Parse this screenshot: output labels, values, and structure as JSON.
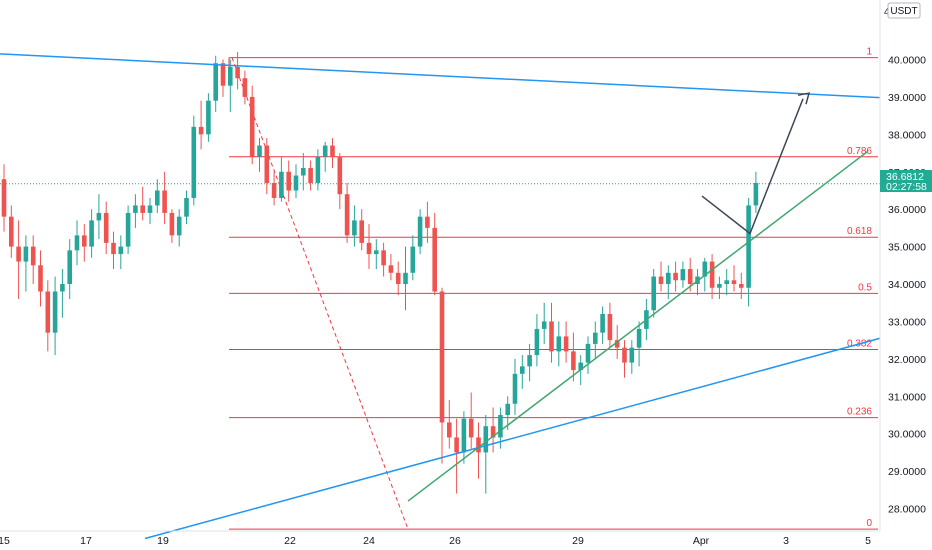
{
  "colors": {
    "up": "#26a69a",
    "down": "#ef5350",
    "fib": "#f23645",
    "trend_blue": "#2196f3",
    "trend_green": "#3fa66f",
    "arrow": "#3d4655",
    "axis_text": "#131722",
    "badge": "#22ab94"
  },
  "chart_data": {
    "type": "candlestick",
    "currency": "USDT",
    "y_axis_unit": "USDT",
    "ylim": [
      27.3,
      41.2
    ],
    "y_ticks": [
      "28.0000",
      "29.0000",
      "30.0000",
      "31.0000",
      "32.0000",
      "33.0000",
      "34.0000",
      "35.0000",
      "36.0000",
      "37.0000",
      "38.0000",
      "39.0000",
      "40.0000"
    ],
    "x_ticks": [
      "15",
      "17",
      "19",
      "22",
      "24",
      "26",
      "29",
      "Apr",
      "3",
      "5"
    ],
    "last_price": "36.6812",
    "countdown": "02:27:58",
    "fib_levels": [
      {
        "label": "1",
        "value": 40.05
      },
      {
        "label": "0.786",
        "value": 37.4
      },
      {
        "label": "0.618",
        "value": 35.25
      },
      {
        "label": "0.5",
        "value": 33.75
      },
      {
        "label": "0.382",
        "value": 32.25
      },
      {
        "label": "0.236",
        "value": 30.43
      },
      {
        "label": "0",
        "value": 27.45
      }
    ],
    "candles": [
      [
        36.8,
        37.2,
        35.4,
        35.8
      ],
      [
        35.8,
        36.1,
        34.7,
        35.0
      ],
      [
        35.0,
        35.7,
        33.6,
        34.6
      ],
      [
        34.6,
        35.3,
        33.8,
        35.0
      ],
      [
        35.0,
        35.3,
        34.0,
        34.5
      ],
      [
        34.5,
        34.9,
        33.4,
        33.8
      ],
      [
        33.8,
        34.1,
        32.2,
        32.7
      ],
      [
        32.7,
        34.2,
        32.1,
        33.8
      ],
      [
        33.8,
        34.4,
        33.1,
        34.0
      ],
      [
        34.0,
        35.2,
        33.6,
        34.9
      ],
      [
        34.9,
        35.7,
        34.5,
        35.3
      ],
      [
        35.3,
        35.6,
        34.6,
        35.0
      ],
      [
        35.0,
        36.0,
        34.7,
        35.7
      ],
      [
        35.7,
        36.4,
        35.2,
        35.9
      ],
      [
        35.9,
        36.2,
        34.8,
        35.1
      ],
      [
        35.1,
        35.4,
        34.4,
        34.8
      ],
      [
        34.8,
        35.3,
        34.4,
        35.0
      ],
      [
        35.0,
        36.1,
        34.8,
        35.9
      ],
      [
        35.9,
        36.4,
        35.5,
        36.1
      ],
      [
        36.1,
        36.6,
        35.7,
        35.9
      ],
      [
        35.9,
        36.3,
        35.6,
        36.1
      ],
      [
        36.1,
        36.8,
        35.9,
        36.5
      ],
      [
        36.5,
        37.0,
        35.6,
        35.9
      ],
      [
        35.9,
        36.0,
        35.1,
        35.3
      ],
      [
        35.3,
        36.0,
        35.0,
        35.8
      ],
      [
        35.8,
        36.5,
        35.6,
        36.3
      ],
      [
        36.3,
        38.5,
        36.1,
        38.2
      ],
      [
        38.2,
        38.9,
        37.6,
        38.0
      ],
      [
        38.0,
        39.1,
        37.8,
        38.9
      ],
      [
        38.9,
        40.1,
        38.6,
        39.9
      ],
      [
        39.9,
        40.0,
        39.0,
        39.3
      ],
      [
        39.3,
        40.0,
        38.6,
        39.8
      ],
      [
        39.8,
        40.2,
        39.2,
        39.5
      ],
      [
        39.5,
        39.7,
        38.8,
        39.0
      ],
      [
        39.0,
        39.3,
        37.2,
        37.4
      ],
      [
        37.4,
        37.9,
        37.0,
        37.7
      ],
      [
        37.7,
        37.9,
        36.4,
        36.7
      ],
      [
        36.7,
        37.0,
        36.1,
        36.3
      ],
      [
        36.3,
        37.4,
        36.2,
        37.0
      ],
      [
        37.0,
        37.3,
        36.2,
        36.5
      ],
      [
        36.5,
        37.2,
        36.3,
        36.9
      ],
      [
        36.9,
        37.5,
        36.5,
        37.1
      ],
      [
        37.1,
        37.3,
        36.5,
        36.7
      ],
      [
        36.7,
        37.6,
        36.5,
        37.4
      ],
      [
        37.4,
        37.8,
        37.0,
        37.7
      ],
      [
        37.7,
        37.9,
        37.1,
        37.4
      ],
      [
        37.4,
        37.5,
        36.0,
        36.4
      ],
      [
        36.4,
        36.7,
        35.1,
        35.3
      ],
      [
        35.3,
        36.1,
        35.0,
        35.7
      ],
      [
        35.7,
        36.0,
        34.9,
        35.1
      ],
      [
        35.1,
        35.6,
        34.4,
        34.8
      ],
      [
        34.8,
        35.2,
        34.4,
        34.9
      ],
      [
        34.9,
        35.1,
        34.2,
        34.5
      ],
      [
        34.5,
        34.8,
        34.1,
        34.3
      ],
      [
        34.3,
        34.6,
        33.7,
        34.0
      ],
      [
        34.0,
        35.0,
        33.3,
        34.3
      ],
      [
        34.3,
        35.3,
        34.1,
        35.0
      ],
      [
        35.0,
        36.0,
        34.8,
        35.8
      ],
      [
        35.8,
        36.2,
        35.1,
        35.5
      ],
      [
        35.5,
        35.9,
        33.7,
        33.8
      ],
      [
        33.8,
        33.9,
        29.2,
        30.3
      ],
      [
        30.3,
        30.9,
        29.6,
        29.9
      ],
      [
        29.9,
        30.4,
        28.4,
        29.5
      ],
      [
        29.5,
        30.6,
        29.2,
        30.4
      ],
      [
        30.4,
        31.1,
        29.6,
        29.9
      ],
      [
        29.9,
        30.3,
        28.8,
        29.5
      ],
      [
        29.5,
        30.5,
        28.4,
        30.2
      ],
      [
        30.2,
        30.7,
        29.5,
        29.9
      ],
      [
        29.9,
        30.7,
        29.6,
        30.5
      ],
      [
        30.5,
        31.0,
        30.1,
        30.8
      ],
      [
        30.8,
        32.0,
        30.5,
        31.6
      ],
      [
        31.6,
        32.1,
        31.2,
        31.8
      ],
      [
        31.8,
        32.4,
        31.4,
        32.1
      ],
      [
        32.1,
        33.2,
        31.8,
        32.8
      ],
      [
        32.8,
        33.5,
        32.4,
        33.0
      ],
      [
        33.0,
        33.5,
        31.9,
        32.2
      ],
      [
        32.2,
        33.0,
        31.8,
        32.6
      ],
      [
        32.6,
        33.0,
        31.9,
        32.2
      ],
      [
        32.2,
        32.7,
        31.4,
        31.7
      ],
      [
        31.7,
        32.1,
        31.3,
        31.9
      ],
      [
        31.9,
        32.6,
        31.6,
        32.4
      ],
      [
        32.4,
        33.0,
        32.0,
        32.7
      ],
      [
        32.7,
        33.4,
        32.4,
        33.2
      ],
      [
        33.2,
        33.5,
        32.3,
        32.5
      ],
      [
        32.5,
        32.9,
        32.0,
        32.3
      ],
      [
        32.3,
        32.5,
        31.5,
        31.9
      ],
      [
        31.9,
        32.5,
        31.6,
        32.3
      ],
      [
        32.3,
        33.0,
        31.8,
        32.8
      ],
      [
        32.8,
        33.6,
        32.5,
        33.3
      ],
      [
        33.3,
        34.4,
        33.1,
        34.2
      ],
      [
        34.2,
        34.6,
        33.8,
        34.0
      ],
      [
        34.0,
        34.5,
        33.6,
        34.3
      ],
      [
        34.3,
        34.6,
        33.8,
        34.1
      ],
      [
        34.1,
        34.6,
        33.9,
        34.4
      ],
      [
        34.4,
        34.7,
        33.8,
        34.0
      ],
      [
        34.0,
        34.4,
        33.7,
        34.2
      ],
      [
        34.2,
        34.7,
        33.8,
        34.6
      ],
      [
        34.6,
        34.8,
        33.6,
        33.9
      ],
      [
        33.9,
        34.2,
        33.6,
        34.0
      ],
      [
        34.0,
        34.4,
        33.7,
        34.1
      ],
      [
        34.1,
        34.5,
        33.8,
        34.0
      ],
      [
        34.0,
        34.3,
        33.6,
        33.9
      ],
      [
        33.9,
        36.3,
        33.4,
        36.1
      ],
      [
        36.1,
        37.0,
        35.9,
        36.7
      ]
    ],
    "annotations": [
      {
        "type": "trendline",
        "name": "upper-resistance-line",
        "color": "#2196f3",
        "points": [
          [
            0,
            40.15
          ],
          [
            880,
            38.98
          ]
        ],
        "x_units": "px"
      }
    ]
  }
}
